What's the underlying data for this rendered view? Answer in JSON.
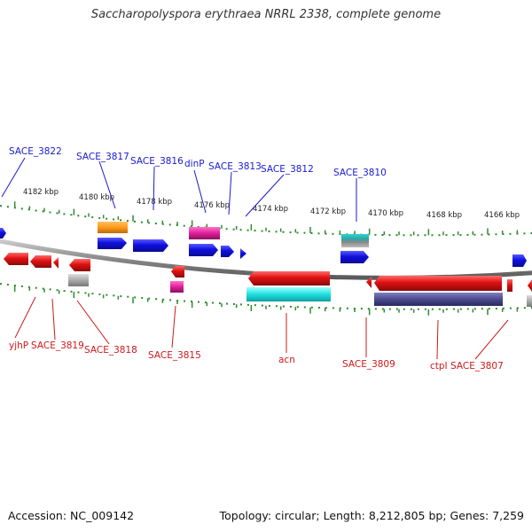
{
  "title": "Saccharopolyspora erythraea NRRL 2338, complete genome",
  "footer": {
    "accession": "Accession: NC_009142",
    "summary": "Topology: circular; Length: 8,212,805 bp; Genes: 7,259"
  },
  "colors": {
    "forward_label": "#1a1acc",
    "reverse_label": "#cc1a1a",
    "backbone": "#8a8a8a",
    "tick": "#2e8b2e"
  },
  "kbp_ticks": [
    "4182 kbp",
    "4180 kbp",
    "4178 kbp",
    "4176 kbp",
    "4174 kbp",
    "4172 kbp",
    "4170 kbp",
    "4168 kbp",
    "4166 kbp"
  ],
  "forward_labels": [
    "SACE_3822",
    "SACE_3817",
    "SACE_3816",
    "dinP",
    "SACE_3813",
    "SACE_3812",
    "SACE_3810"
  ],
  "reverse_labels": [
    "yjhP",
    "SACE_3819",
    "SACE_3818",
    "SACE_3815",
    "acn",
    "SACE_3809",
    "ctpI",
    "SACE_3807"
  ],
  "feature_colors": {
    "cds_forward": "#1010e0",
    "cds_reverse": "#e01010",
    "orange": "#ff9a1a",
    "magenta": "#e0209a",
    "cyan": "#20e0e0",
    "purple": "#4a4a8e",
    "gray": "#aaaaaa",
    "teal": "#2aa8a8"
  }
}
